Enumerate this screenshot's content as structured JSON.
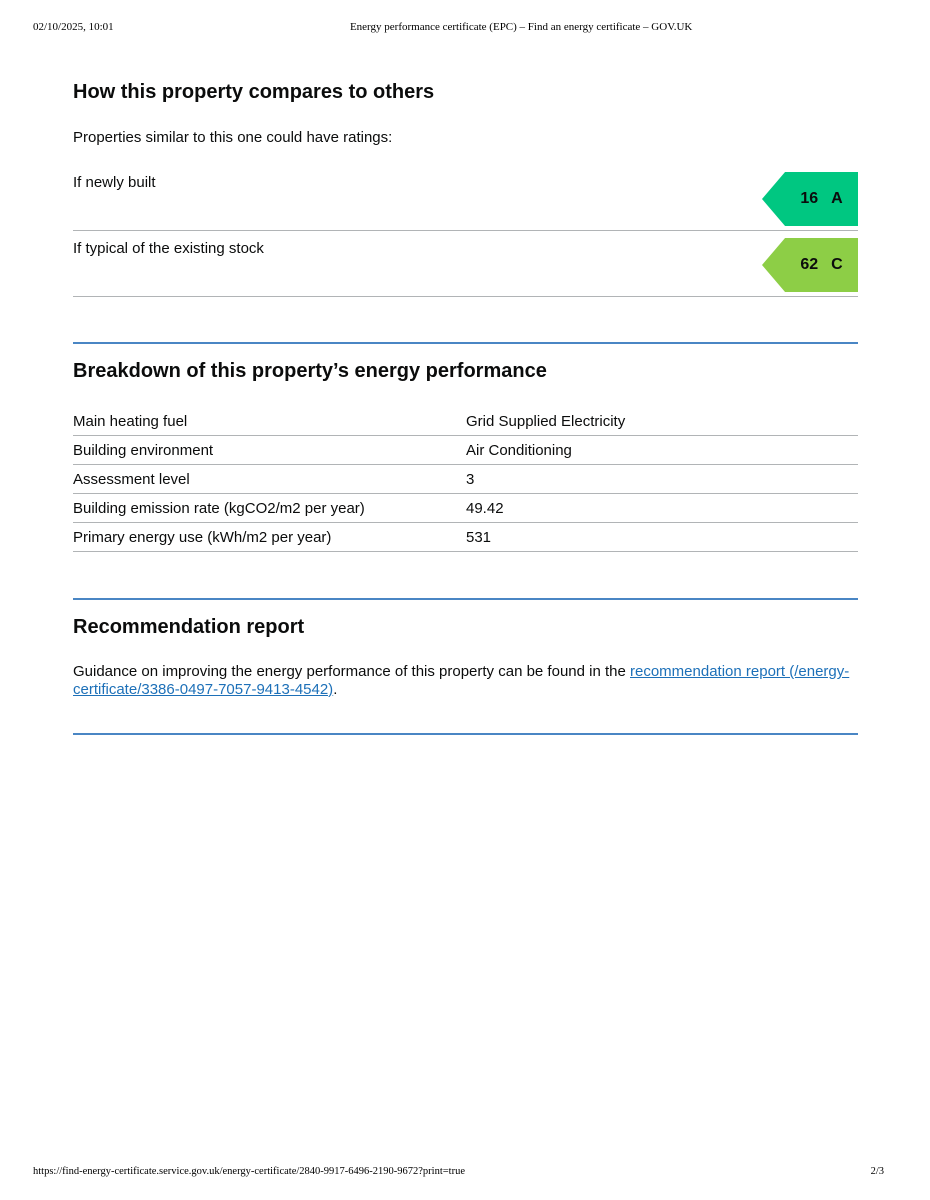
{
  "print_header": {
    "datetime": "02/10/2025, 10:01",
    "title": "Energy performance certificate (EPC) – Find an energy certificate – GOV.UK"
  },
  "print_footer": {
    "url": "https://find-energy-certificate.service.gov.uk/energy-certificate/2840-9917-6496-2190-9672?print=true",
    "page_indicator": "2/3"
  },
  "compare_section": {
    "heading": "How this property compares to others",
    "intro": "Properties similar to this one could have ratings:",
    "rows": [
      {
        "label": "If newly built",
        "score": "16",
        "band": "A",
        "color": "#00c781"
      },
      {
        "label": "If typical of the existing stock",
        "score": "62",
        "band": "C",
        "color": "#8dce46"
      }
    ]
  },
  "breakdown_section": {
    "heading": "Breakdown of this property’s energy performance",
    "rows": [
      {
        "label": "Main heating fuel",
        "value": "Grid Supplied Electricity"
      },
      {
        "label": "Building environment",
        "value": "Air Conditioning"
      },
      {
        "label": "Assessment level",
        "value": "3"
      },
      {
        "label": "Building emission rate (kgCO2/m2 per year)",
        "value": "49.42"
      },
      {
        "label": "Primary energy use (kWh/m2 per year)",
        "value": "531"
      }
    ]
  },
  "recommendation_section": {
    "heading": "Recommendation report",
    "text_before_link": "Guidance on improving the energy performance of this property can be found in the ",
    "link_text": "recommendation report (/energy-certificate/3386-0497-7057-9413-4542)",
    "text_after_link": "."
  },
  "colors": {
    "band_a": "#00c781",
    "band_c": "#8dce46",
    "section_rule_blue": "#4a86c4",
    "row_border_grey": "#b1b4b6",
    "link_blue": "#1d70b8"
  }
}
